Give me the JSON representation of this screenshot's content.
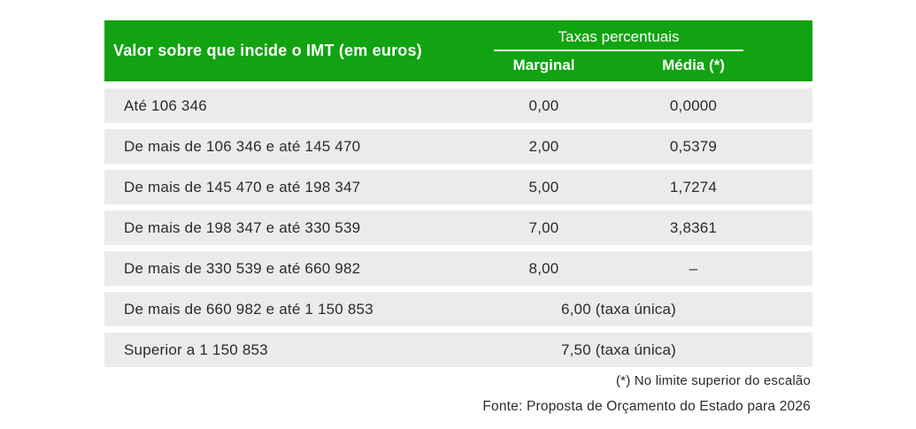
{
  "chart_data": {
    "type": "table",
    "column_group_title": "Taxas percentuais",
    "columns": [
      {
        "key": "label",
        "header": "Valor sobre que incide o IMT (em euros)"
      },
      {
        "key": "marginal",
        "header": "Marginal"
      },
      {
        "key": "media",
        "header": "Média (*)"
      }
    ],
    "rows": [
      {
        "label": "Até 106 346",
        "marginal": "0,00",
        "media": "0,0000"
      },
      {
        "label": "De mais de 106 346 e até 145 470",
        "marginal": "2,00",
        "media": "0,5379"
      },
      {
        "label": "De mais de 145 470 e até 198 347",
        "marginal": "5,00",
        "media": "1,7274"
      },
      {
        "label": "De mais de 198 347 e até 330 539",
        "marginal": "7,00",
        "media": "3,8361"
      },
      {
        "label": "De mais de 330 539 e até 660 982",
        "marginal": "8,00",
        "media": "–"
      },
      {
        "label": "De mais de 660 982 e até 1 150 853",
        "merged": "6,00 (taxa única)"
      },
      {
        "label": "Superior a 1 150 853",
        "merged": "7,50 (taxa única)"
      }
    ],
    "footnote": "(*) No limite superior do escalão",
    "source": "Fonte: Proposta de Orçamento do Estado para 2026"
  },
  "colors": {
    "header_green": "#11A311",
    "header_text": "#FFFFFF",
    "row_background": "#EBEBEB",
    "body_text": "#2B2B2B"
  }
}
